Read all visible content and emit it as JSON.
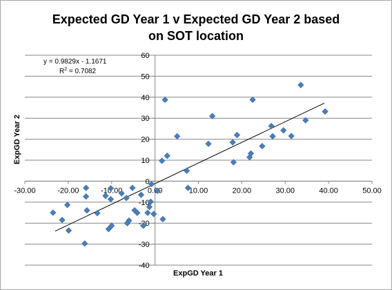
{
  "chart_data": {
    "type": "scatter",
    "title_line1": "Expected GD Year 1 v Expected GD Year 2 based",
    "title_line2": "on SOT location",
    "xlabel": "ExpGD Year 1",
    "ylabel": "ExpGD Year 2",
    "xlim": [
      -30,
      50
    ],
    "ylim": [
      -40,
      60
    ],
    "x_ticks": [
      "-30.00",
      "-20.00",
      "-10.00",
      "0.00",
      "10.00",
      "20.00",
      "30.00",
      "40.00",
      "50.00"
    ],
    "y_ticks": [
      "60",
      "50",
      "40",
      "30",
      "20",
      "10",
      "0",
      "-10",
      "-20",
      "-30",
      "-40"
    ],
    "grid": "horizontal",
    "marker_color": "#4a7ebb",
    "trendline": {
      "slope": 0.9829,
      "intercept": -1.1671,
      "equation": "y = 0.9829x - 1.1671",
      "r2_label": "R",
      "r2_sup": "2",
      "r2_value": " = 0.7082"
    },
    "points": [
      {
        "x": -23.5,
        "y": -15
      },
      {
        "x": -21.4,
        "y": -18.5
      },
      {
        "x": -20.2,
        "y": -11.3
      },
      {
        "x": -19.9,
        "y": -23.5
      },
      {
        "x": -16.2,
        "y": -29.7
      },
      {
        "x": -15.9,
        "y": -3.2
      },
      {
        "x": -15.9,
        "y": -7.3
      },
      {
        "x": -15.7,
        "y": -13.9
      },
      {
        "x": -13.3,
        "y": -15.2
      },
      {
        "x": -11.4,
        "y": -7.0
      },
      {
        "x": -10.7,
        "y": -22.8
      },
      {
        "x": -10.2,
        "y": -3.4
      },
      {
        "x": -10.2,
        "y": -8.6
      },
      {
        "x": -10.0,
        "y": -21.2
      },
      {
        "x": -7.7,
        "y": -5.8
      },
      {
        "x": -6.6,
        "y": -8.0
      },
      {
        "x": -6.4,
        "y": -20.0
      },
      {
        "x": -6.0,
        "y": -18.8
      },
      {
        "x": -5.2,
        "y": -3.2
      },
      {
        "x": -4.7,
        "y": -13.9
      },
      {
        "x": -4.1,
        "y": -15.1
      },
      {
        "x": -3.2,
        "y": -6.5
      },
      {
        "x": -2.7,
        "y": -21.2
      },
      {
        "x": -1.7,
        "y": -15.1
      },
      {
        "x": -1.3,
        "y": -12.3
      },
      {
        "x": -1.0,
        "y": -9.8
      },
      {
        "x": -0.8,
        "y": -1.4
      },
      {
        "x": -0.3,
        "y": -15.6
      },
      {
        "x": 0.6,
        "y": -4.6
      },
      {
        "x": 1.6,
        "y": 9.7
      },
      {
        "x": 1.8,
        "y": -18.1
      },
      {
        "x": 2.3,
        "y": 38.8
      },
      {
        "x": 2.8,
        "y": 12.1
      },
      {
        "x": 5.1,
        "y": 21.4
      },
      {
        "x": 7.3,
        "y": 5.0
      },
      {
        "x": 7.6,
        "y": -3.2
      },
      {
        "x": 12.3,
        "y": 17.8
      },
      {
        "x": 13.2,
        "y": 31.0
      },
      {
        "x": 17.9,
        "y": 18.5
      },
      {
        "x": 18.1,
        "y": 9.0
      },
      {
        "x": 18.9,
        "y": 22.0
      },
      {
        "x": 21.8,
        "y": 11.4
      },
      {
        "x": 22.1,
        "y": 13.2
      },
      {
        "x": 22.5,
        "y": 38.8
      },
      {
        "x": 24.7,
        "y": 16.7
      },
      {
        "x": 26.8,
        "y": 26.3
      },
      {
        "x": 27.1,
        "y": 21.4
      },
      {
        "x": 29.6,
        "y": 24.2
      },
      {
        "x": 31.4,
        "y": 21.5
      },
      {
        "x": 33.6,
        "y": 45.8
      },
      {
        "x": 34.7,
        "y": 29.0
      },
      {
        "x": 39.2,
        "y": 33.2
      }
    ],
    "trend_x_range": [
      -23.0,
      39.0
    ]
  }
}
